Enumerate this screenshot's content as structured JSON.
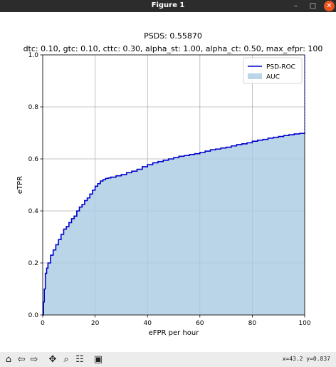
{
  "window": {
    "title": "Figure 1",
    "min_glyph": "–",
    "max_glyph": "□",
    "close_glyph": "✕",
    "close_color": "#e95420"
  },
  "toolbar": {
    "home_icon": "⌂",
    "back_icon": "⇦",
    "forward_icon": "⇨",
    "pan_icon": "✥",
    "zoom_icon": "⌕",
    "configure_icon": "☷",
    "save_icon": "▣",
    "coords": "x=43.2 y=0.837"
  },
  "chart_data": {
    "type": "area",
    "title": "PSDS: 0.55870",
    "subtitle": "dtc: 0.10, gtc: 0.10, cttc: 0.30, alpha_st: 1.00, alpha_ct: 0.50, max_efpr: 100",
    "xlabel": "eFPR per hour",
    "ylabel": "eTPR",
    "xlim": [
      0,
      100
    ],
    "ylim": [
      0,
      1.0
    ],
    "xticks": [
      "0",
      "20",
      "40",
      "60",
      "80",
      "100"
    ],
    "yticks": [
      "0.0",
      "0.2",
      "0.4",
      "0.6",
      "0.8",
      "1.0"
    ],
    "grid": true,
    "legend_position": "top-right",
    "series": [
      {
        "name": "PSD-ROC",
        "color": "#0000cc",
        "kind": "line"
      },
      {
        "name": "AUC",
        "color": "#a9c9e2",
        "kind": "fill"
      }
    ],
    "x": [
      0,
      0.3,
      0.6,
      1,
      1.5,
      2,
      3,
      4,
      5,
      6,
      7,
      8,
      9,
      10,
      11,
      12,
      13,
      14,
      15,
      16,
      17,
      18,
      19,
      20,
      21,
      22,
      23,
      24,
      25,
      26,
      28,
      30,
      32,
      34,
      36,
      38,
      40,
      42,
      44,
      46,
      48,
      50,
      52,
      54,
      56,
      58,
      60,
      62,
      64,
      66,
      68,
      70,
      72,
      74,
      76,
      78,
      80,
      82,
      84,
      86,
      88,
      90,
      92,
      94,
      96,
      98,
      100
    ],
    "y": [
      0.0,
      0.05,
      0.1,
      0.16,
      0.18,
      0.2,
      0.23,
      0.25,
      0.27,
      0.29,
      0.31,
      0.33,
      0.34,
      0.355,
      0.37,
      0.38,
      0.4,
      0.415,
      0.425,
      0.44,
      0.45,
      0.465,
      0.48,
      0.495,
      0.505,
      0.515,
      0.52,
      0.525,
      0.527,
      0.53,
      0.535,
      0.54,
      0.547,
      0.553,
      0.56,
      0.57,
      0.578,
      0.585,
      0.59,
      0.595,
      0.6,
      0.605,
      0.61,
      0.613,
      0.617,
      0.62,
      0.625,
      0.63,
      0.635,
      0.638,
      0.642,
      0.645,
      0.65,
      0.655,
      0.658,
      0.662,
      0.668,
      0.672,
      0.675,
      0.68,
      0.683,
      0.686,
      0.69,
      0.693,
      0.696,
      0.698,
      0.7
    ]
  }
}
